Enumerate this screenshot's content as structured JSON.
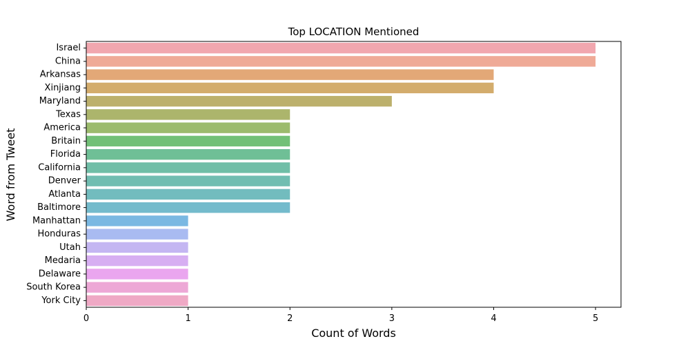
{
  "chart_data": {
    "type": "bar",
    "orientation": "horizontal",
    "title": "Top LOCATION Mentioned",
    "xlabel": "Count of Words",
    "ylabel": "Word from Tweet",
    "xlim": [
      0,
      5.25
    ],
    "xticks": [
      "0",
      "1",
      "2",
      "3",
      "4",
      "5"
    ],
    "grid": false,
    "categories": [
      "Israel",
      "China",
      "Arkansas",
      "Xinjiang",
      "Maryland",
      "Texas",
      "America",
      "Britain",
      "Florida",
      "California",
      "Denver",
      "Atlanta",
      "Baltimore",
      "Manhattan",
      "Honduras",
      "Utah",
      "Medaria",
      "Delaware",
      "South Korea",
      "York City"
    ],
    "values": [
      5,
      5,
      4,
      4,
      3,
      2,
      2,
      2,
      2,
      2,
      2,
      2,
      2,
      1,
      1,
      1,
      1,
      1,
      1,
      1
    ],
    "colors": [
      "#f1a7af",
      "#efaa97",
      "#e3a877",
      "#d3ac6c",
      "#bcb06c",
      "#acb56c",
      "#9cbb6d",
      "#72c077",
      "#6fbf96",
      "#70bea7",
      "#71bdb1",
      "#72bcbe",
      "#74bbcc",
      "#7ab8e2",
      "#a9bbf1",
      "#c4b6f2",
      "#d7aef2",
      "#eaa6ef",
      "#eda8d6",
      "#efa9c5"
    ]
  }
}
